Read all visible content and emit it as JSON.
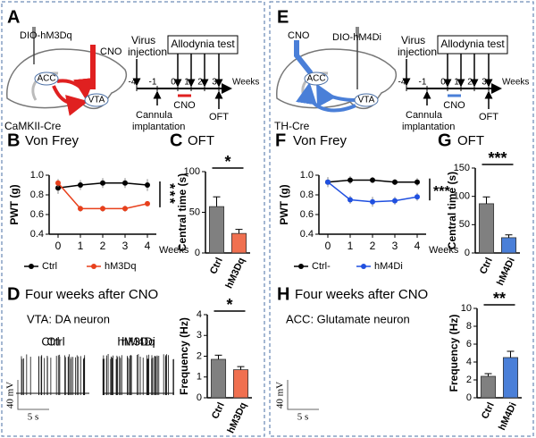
{
  "figure": {
    "A": {
      "label": "A",
      "construct": "DIO-hM3Dq",
      "drug": "CNO",
      "region1": "ACC",
      "region2": "VTA",
      "mouse": "CaMKII-Cre",
      "virus": [
        "Virus",
        "injection"
      ],
      "test": "Allodynia test",
      "timeline": [
        "-4",
        "-1",
        "0",
        "1",
        "2",
        "3"
      ],
      "unit": "Weeks",
      "bar_label": "CNO",
      "surgery": [
        "Cannula",
        "implantation"
      ],
      "oft": "OFT"
    },
    "E": {
      "label": "E",
      "construct": "DIO-hM4Di",
      "drug": "CNO",
      "region1": "ACC",
      "region2": "VTA",
      "mouse": "TH-Cre",
      "virus": [
        "Virus",
        "injection"
      ],
      "test": "Allodynia test",
      "timeline": [
        "-4",
        "-1",
        "0",
        "1",
        "2",
        "3"
      ],
      "unit": "Weeks",
      "bar_label": "CNO",
      "surgery": [
        "Cannula",
        "implantation"
      ],
      "oft": "OFT"
    },
    "D": {
      "label": "D",
      "title": "Four weeks after CNO",
      "subtitle": "VTA: DA neuron",
      "groups": [
        "Ctrl",
        "hM3Dq"
      ],
      "scale_v": "40 mV",
      "scale_t": "5 s"
    },
    "H": {
      "label": "H",
      "title": "Four weeks after CNO",
      "subtitle": "ACC: Glutamate neuron",
      "groups": [
        "Ctrl",
        "hM4Di"
      ],
      "scale_v": "40 mV",
      "scale_t": "5 s"
    }
  },
  "chart_data": [
    {
      "type": "line",
      "panel": "B",
      "title": "Von Frey",
      "xlabel": "Weeks",
      "ylabel": "PWT (g)",
      "annotation": "***",
      "x": [
        0,
        1,
        2,
        3,
        4
      ],
      "xlim": [
        -0.4,
        4.4
      ],
      "xticks": [
        0,
        1,
        2,
        3,
        4
      ],
      "ylim": [
        0.4,
        1.0
      ],
      "yticks": [
        0.4,
        0.6,
        0.8,
        {
          "value": 1.0,
          "label": "1.0"
        }
      ],
      "series": [
        {
          "name": "Ctrl",
          "color": "#000000",
          "values": [
            0.87,
            0.9,
            0.92,
            0.92,
            0.9
          ],
          "errors": [
            0.06,
            0.05,
            0.05,
            0.05,
            0.06
          ]
        },
        {
          "name": "hM3Dq",
          "color": "#e8401c",
          "values": [
            0.92,
            0.66,
            0.66,
            0.66,
            0.71
          ],
          "errors": [
            0.04,
            0.03,
            0.03,
            0.03,
            0.02
          ]
        }
      ]
    },
    {
      "type": "bar",
      "panel": "C",
      "title": "OFT",
      "ylabel": "Central time (s)",
      "annotation": "*",
      "categories": [
        "Ctrl",
        "hM3Dq"
      ],
      "values": [
        57,
        24
      ],
      "errors": [
        12,
        5
      ],
      "colors": [
        "#808080",
        "#f07050"
      ],
      "ylim": [
        0,
        100
      ],
      "yticks": [
        0,
        50,
        100
      ]
    },
    {
      "type": "bar",
      "ylabel": "Frequency (Hz)",
      "annotation": "*",
      "categories": [
        "Ctrl",
        "hM3Dq"
      ],
      "values": [
        1.85,
        1.35
      ],
      "errors": [
        0.2,
        0.15
      ],
      "colors": [
        "#808080",
        "#f07050"
      ],
      "ylim": [
        0,
        4
      ],
      "yticks": [
        0,
        1,
        2,
        3,
        4
      ]
    },
    {
      "type": "line",
      "panel": "F",
      "title": "Von Frey",
      "xlabel": "Weeks",
      "ylabel": "PWT (g)",
      "annotation": "***",
      "x": [
        0,
        1,
        2,
        3,
        4
      ],
      "xlim": [
        -0.4,
        4.4
      ],
      "xticks": [
        0,
        1,
        2,
        3,
        4
      ],
      "ylim": [
        0.4,
        1.0
      ],
      "yticks": [
        0.4,
        0.6,
        0.8,
        {
          "value": 1.0,
          "label": "1.0"
        }
      ],
      "series": [
        {
          "name": "Ctrl-",
          "color": "#000000",
          "values": [
            0.93,
            0.95,
            0.95,
            0.93,
            0.93
          ],
          "errors": [
            0.05,
            0.04,
            0.03,
            0.03,
            0.04
          ]
        },
        {
          "name": "hM4Di",
          "color": "#2050e0",
          "values": [
            0.93,
            0.75,
            0.73,
            0.74,
            0.78
          ],
          "errors": [
            0.05,
            0.04,
            0.05,
            0.04,
            0.04
          ]
        }
      ]
    },
    {
      "type": "bar",
      "panel": "G",
      "title": "OFT",
      "ylabel": "Central time (s)",
      "annotation": "***",
      "categories": [
        "Ctrl",
        "hM4Di"
      ],
      "values": [
        87,
        27
      ],
      "errors": [
        12,
        5
      ],
      "colors": [
        "#808080",
        "#4a7fd8"
      ],
      "ylim": [
        0,
        150
      ],
      "yticks": [
        0,
        50,
        100,
        150
      ]
    },
    {
      "type": "bar",
      "ylabel": "Frequency (Hz)",
      "annotation": "**",
      "categories": [
        "Ctrl",
        "hM4Di"
      ],
      "values": [
        2.4,
        4.5
      ],
      "errors": [
        0.3,
        0.7
      ],
      "colors": [
        "#808080",
        "#4a7fd8"
      ],
      "ylim": [
        0,
        10
      ],
      "yticks": [
        0,
        2,
        4,
        6,
        8,
        10
      ]
    }
  ]
}
